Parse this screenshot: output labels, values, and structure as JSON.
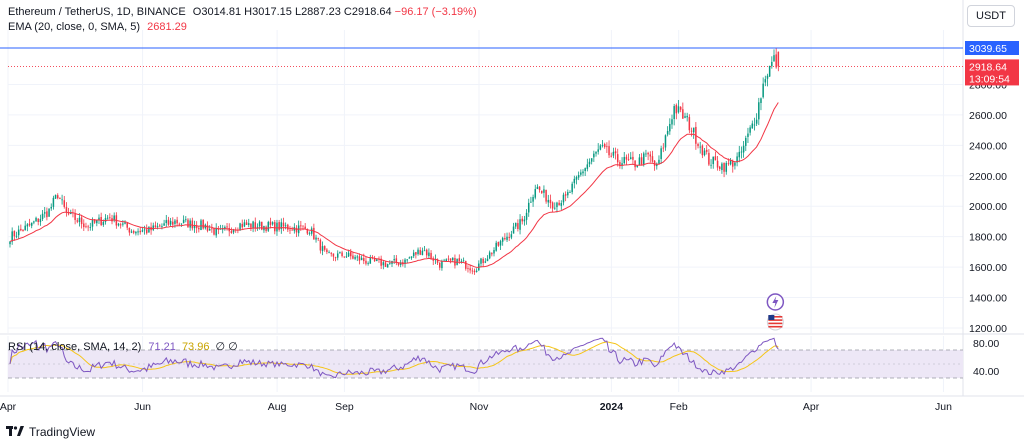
{
  "header": {
    "symbol": "Ethereum / TetherUS, 1D, BINANCE",
    "o_label": "O",
    "o": "3014.81",
    "h_label": "H",
    "h": "3017.15",
    "l_label": "L",
    "l": "2887.23",
    "c_label": "C",
    "c": "2918.64",
    "change": "−96.17 (−3.19%)"
  },
  "ema_legend": {
    "label": "EMA (20, close, 0, SMA, 5)",
    "value": "2681.29"
  },
  "rsi_legend": {
    "label": "RSI (14, close, SMA, 14, 2)",
    "value1": "71.21",
    "value2": "73.96",
    "extra": "∅ ∅"
  },
  "currency": "USDT",
  "price_labels": {
    "high_line": "3039.65",
    "last": "2918.64",
    "countdown": "13:09:54"
  },
  "brand": "TradingView",
  "colors": {
    "up": "#089981",
    "down": "#f23645",
    "ema": "#f23645",
    "rsi": "#7e57c2",
    "rsi_ma": "#f5c518",
    "high_line": "#2962ff",
    "rsi_band": "#ede7f6"
  },
  "icons": [
    "lightning-event-icon",
    "us-flag-event-icon"
  ],
  "chart_data": [
    {
      "type": "candlestick",
      "x_ticks": [
        "Apr",
        "Jun",
        "Aug",
        "Sep",
        "Nov",
        "2024",
        "Feb",
        "Apr",
        "Jun"
      ],
      "y_ticks": [
        1200,
        1400,
        1600,
        1800,
        2000,
        2200,
        2400,
        2600,
        2800
      ],
      "ylim": [
        1150,
        3100
      ],
      "close_anchors": [
        [
          0,
          1800
        ],
        [
          10,
          1880
        ],
        [
          18,
          1970
        ],
        [
          22,
          2080
        ],
        [
          26,
          1950
        ],
        [
          36,
          1870
        ],
        [
          46,
          1930
        ],
        [
          56,
          1840
        ],
        [
          64,
          1840
        ],
        [
          76,
          1900
        ],
        [
          90,
          1870
        ],
        [
          96,
          1820
        ],
        [
          106,
          1880
        ],
        [
          118,
          1870
        ],
        [
          130,
          1860
        ],
        [
          138,
          1850
        ],
        [
          146,
          1670
        ],
        [
          154,
          1680
        ],
        [
          164,
          1640
        ],
        [
          174,
          1620
        ],
        [
          182,
          1640
        ],
        [
          190,
          1720
        ],
        [
          198,
          1620
        ],
        [
          206,
          1640
        ],
        [
          214,
          1590
        ],
        [
          222,
          1700
        ],
        [
          230,
          1820
        ],
        [
          236,
          1900
        ],
        [
          242,
          2130
        ],
        [
          250,
          2020
        ],
        [
          256,
          2050
        ],
        [
          264,
          2240
        ],
        [
          272,
          2380
        ],
        [
          280,
          2300
        ],
        [
          288,
          2280
        ],
        [
          294,
          2330
        ],
        [
          298,
          2250
        ],
        [
          306,
          2650
        ],
        [
          312,
          2560
        ],
        [
          318,
          2400
        ],
        [
          322,
          2300
        ],
        [
          330,
          2260
        ],
        [
          336,
          2320
        ],
        [
          340,
          2460
        ],
        [
          344,
          2610
        ],
        [
          348,
          2860
        ],
        [
          352,
          2960
        ],
        [
          354,
          2918.64
        ]
      ],
      "last_close": 2918.64,
      "high": 3039.65,
      "ema": {
        "period": 20,
        "last": 2681.29
      }
    },
    {
      "type": "line",
      "name": "RSI (14, close, SMA, 14, 2)",
      "ylim": [
        25,
        88
      ],
      "bands": [
        70,
        30
      ],
      "y_ticks": [
        80,
        40
      ],
      "last_rsi": 71.21,
      "last_ma": 73.96
    }
  ]
}
